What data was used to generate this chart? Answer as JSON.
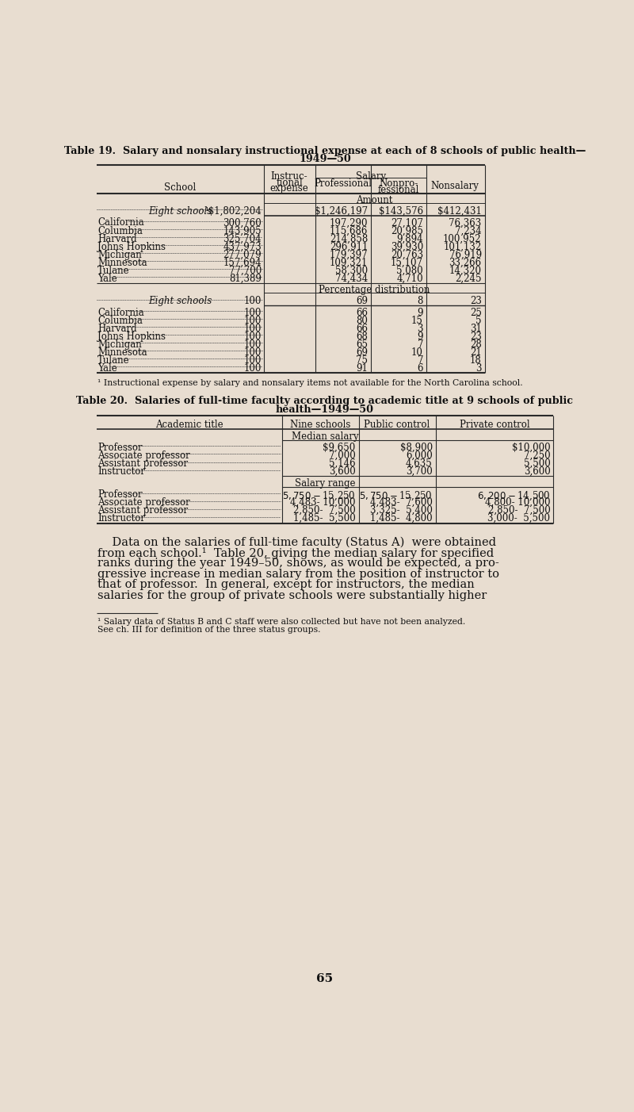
{
  "bg_color": "#e8ddd0",
  "text_color": "#1a1a1a",
  "title19_line1": "Table 19.  Salary and nonsalary instructional expense at each of 8 schools of public health—",
  "title19_line2": "1949—50",
  "title20_line1": "Table 20.  Salaries of full-time faculty according to academic title at 9 schools of public",
  "title20_line2": "health—1949—50",
  "footnote19": "¹ Instructional expense by salary and nonsalary items not available for the North Carolina school.",
  "footnote20_line1": "¹ Salary data of Status B and C staff were also collected but have not been analyzed.",
  "footnote20_line2": "See ch. III for definition of the three status groups.",
  "page_number": "65",
  "t19_schools": [
    "Eight schools",
    "California",
    "Columbia",
    "Harvard",
    "Johns Hopkins",
    "Michigan",
    "Minnesota",
    "Tulane",
    "Yale"
  ],
  "t19_instruct": [
    "¹$1,802,204",
    "300,760",
    "143,905",
    "325,704",
    "437,973",
    "277,079",
    "157,694",
    "77,700",
    "81,389"
  ],
  "t19_prof": [
    "$1,246,197",
    "197,290",
    "115,686",
    "214,858",
    "296,911",
    "179,397",
    "109,321",
    "58,300",
    "74,434"
  ],
  "t19_nonprof": [
    "$143,576",
    "27,107",
    "20,985",
    "9,894",
    "39,930",
    "20,763",
    "15,107",
    "5,080",
    "4,710"
  ],
  "t19_nonsalary": [
    "$412,431",
    "76,363",
    "7,234",
    "100,952",
    "101,132",
    "76,919",
    "33,266",
    "14,320",
    "2,245"
  ],
  "t19_pct_instruct": [
    "100",
    "100",
    "100",
    "100",
    "100",
    "100",
    "100",
    "100",
    "100"
  ],
  "t19_pct_prof": [
    "69",
    "66",
    "80",
    "66",
    "68",
    "65",
    "69",
    "75",
    "91"
  ],
  "t19_pct_nonprof": [
    "8",
    "9",
    "15",
    "3",
    "9",
    "7",
    "10",
    "7",
    "6"
  ],
  "t19_pct_nonsalary": [
    "23",
    "25",
    "5",
    "31",
    "23",
    "28",
    "21",
    "18",
    "3"
  ],
  "t20_titles": [
    "Professor",
    "Associate professor",
    "Assistant professor",
    "Instructor"
  ],
  "t20_nine_med": [
    "$9,650",
    "7,000",
    "5,146",
    "3,600"
  ],
  "t20_pub_med": [
    "$8,900",
    "6,000",
    "4,635",
    "3,700"
  ],
  "t20_priv_med": [
    "$10,000",
    "7,250",
    "5,500",
    "3,600"
  ],
  "t20_nine_range": [
    "$5,750-$15,250",
    "4,483- 10,000",
    "2,850-  7,500",
    "1,485-  5,500"
  ],
  "t20_pub_range": [
    "$5,750-$15,250",
    "4,483-  7,600",
    "3,325-  5,400",
    "1,485-  4,800"
  ],
  "t20_priv_range": [
    "$6,200-$14,500",
    "4,800- 10,000",
    "2,850-  7,500",
    "3,000-  5,500"
  ],
  "body_lines": [
    "    Data on the salaries of full-time faculty (Status A)  were obtained",
    "from each school.¹  Table 20, giving the median salary for specified",
    "ranks during the year 1949–50, shows, as would be expected, a pro-",
    "gressive increase in median salary from the position of instructor to",
    "that of professor.  In general, except for instructors, the median",
    "salaries for the group of private schools were substantially higher"
  ]
}
